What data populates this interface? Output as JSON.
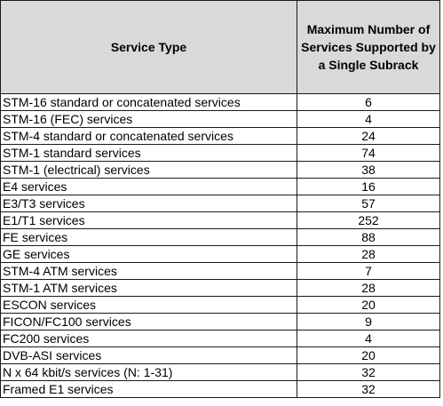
{
  "table": {
    "headers": {
      "service_type": "Service Type",
      "max_services": "Maximum Number of Services Supported by a Single Subrack"
    },
    "rows": [
      {
        "service": "STM-16 standard or concatenated services",
        "max": "6"
      },
      {
        "service": "STM-16 (FEC) services",
        "max": "4"
      },
      {
        "service": "STM-4 standard or concatenated services",
        "max": "24"
      },
      {
        "service": "STM-1 standard services",
        "max": "74"
      },
      {
        "service": "STM-1 (electrical) services",
        "max": "38"
      },
      {
        "service": "E4 services",
        "max": "16"
      },
      {
        "service": "E3/T3 services",
        "max": "57"
      },
      {
        "service": "E1/T1 services",
        "max": "252"
      },
      {
        "service": "FE services",
        "max": "88"
      },
      {
        "service": "GE services",
        "max": "28"
      },
      {
        "service": "STM-4 ATM services",
        "max": "7"
      },
      {
        "service": "STM-1 ATM services",
        "max": "28"
      },
      {
        "service": "ESCON services",
        "max": "20"
      },
      {
        "service": "FICON/FC100 services",
        "max": "9"
      },
      {
        "service": "FC200 services",
        "max": "4"
      },
      {
        "service": "DVB-ASI services",
        "max": "20"
      },
      {
        "service": "N x 64 kbit/s services (N: 1-31)",
        "max": "32"
      },
      {
        "service": "Framed E1 services",
        "max": "32"
      }
    ]
  }
}
